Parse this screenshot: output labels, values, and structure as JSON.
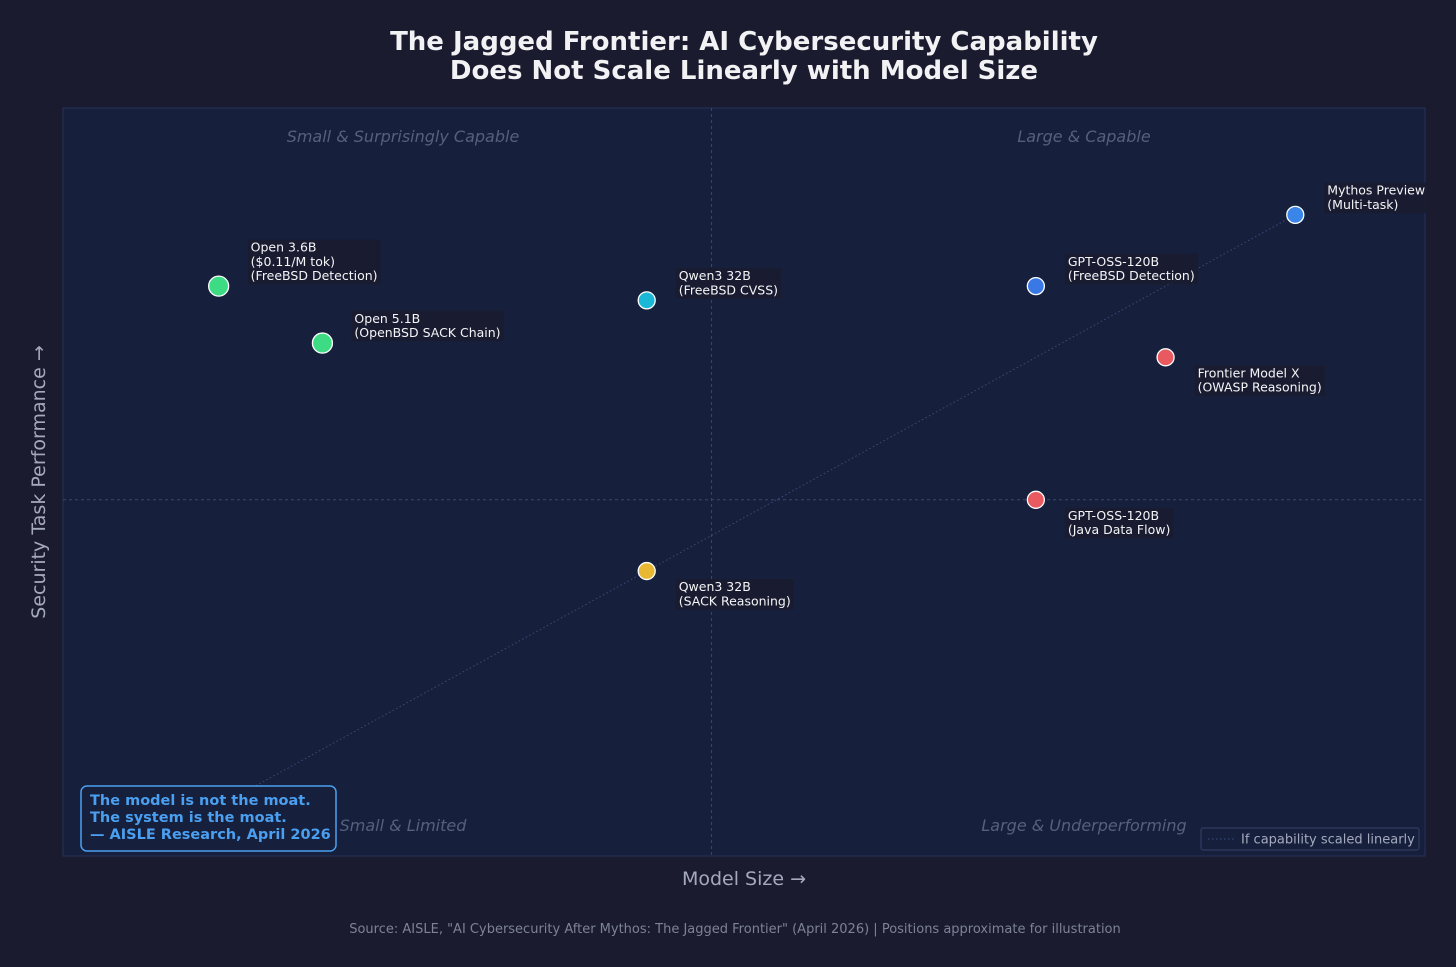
{
  "chart_data": {
    "type": "scatter",
    "title": [
      "The Jagged Frontier: AI Cybersecurity Capability",
      "Does Not Scale Linearly with Model Size"
    ],
    "xlabel": "Model Size →",
    "ylabel": "Security Task Performance →",
    "xlim": [
      0,
      10.5
    ],
    "ylim": [
      0,
      10.5
    ],
    "quadrants": {
      "top_left": "Small & Surprisingly Capable",
      "top_right": "Large & Capable",
      "bottom_left": "Small & Limited",
      "bottom_right": "Large & Underperforming"
    },
    "points": [
      {
        "label": [
          "Open 3.6B",
          "($0.11/M tok)",
          "(FreeBSD Detection)"
        ],
        "x": 1.2,
        "y": 8.0,
        "color": "#3ddc84",
        "large": true,
        "label_pos": "above-right"
      },
      {
        "label": [
          "Open 5.1B",
          "(OpenBSD SACK Chain)"
        ],
        "x": 2.0,
        "y": 7.2,
        "color": "#3ddc84",
        "large": true,
        "label_pos": "above-right"
      },
      {
        "label": [
          "Qwen3 32B",
          "(FreeBSD CVSS)"
        ],
        "x": 4.5,
        "y": 7.8,
        "color": "#1ab8d6",
        "large": false,
        "label_pos": "above-right"
      },
      {
        "label": [
          "GPT-OSS-120B",
          "(FreeBSD Detection)"
        ],
        "x": 7.5,
        "y": 8.0,
        "color": "#3a78e6",
        "large": false,
        "label_pos": "above-right"
      },
      {
        "label": [
          "Mythos Preview",
          "(Multi-task)"
        ],
        "x": 9.5,
        "y": 9.0,
        "color": "#3a86e8",
        "large": false,
        "label_pos": "above-right"
      },
      {
        "label": [
          "Frontier Model X",
          "(OWASP Reasoning)"
        ],
        "x": 8.5,
        "y": 7.0,
        "color": "#e85a5f",
        "large": false,
        "label_pos": "below-right"
      },
      {
        "label": [
          "GPT-OSS-120B",
          "(Java Data Flow)"
        ],
        "x": 7.5,
        "y": 5.0,
        "color": "#e85a5f",
        "large": false,
        "label_pos": "below-right"
      },
      {
        "label": [
          "Qwen3 32B",
          "(SACK Reasoning)"
        ],
        "x": 4.5,
        "y": 4.0,
        "color": "#e8b832",
        "large": false,
        "label_pos": "below-right"
      }
    ],
    "reference_line": {
      "label": "If capability scaled linearly",
      "from": [
        1.0,
        0.5
      ],
      "to": [
        9.5,
        9.0
      ]
    },
    "legend_position": "lower-right",
    "grid": false,
    "midlines": [
      5.0,
      5.0
    ]
  },
  "callout": [
    "The model is not the moat.",
    "The system is the moat.",
    "— AISLE Research, April 2026"
  ],
  "source": "Source: AISLE, \"AI Cybersecurity After Mythos: The Jagged Frontier\" (April 2026)  |  Positions approximate for illustration",
  "colors": {
    "background": "#1a1b2e",
    "plot_background": "#16203c",
    "callout_accent": "#4a9ff0"
  }
}
